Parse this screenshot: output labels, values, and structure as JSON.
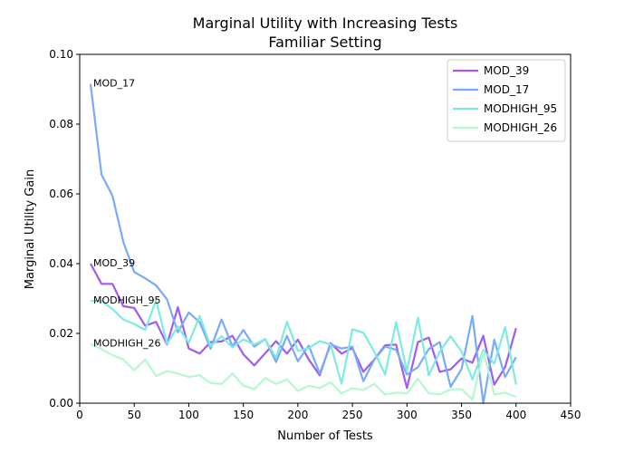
{
  "chart_data": {
    "type": "line",
    "title": "Marginal Utility with Increasing Tests",
    "subtitle": "Familiar Setting",
    "xlabel": "Number of Tests",
    "ylabel": "Marginal Utility Gain",
    "xlim": [
      0,
      450
    ],
    "ylim": [
      0,
      0.1
    ],
    "x_ticks": [
      0,
      50,
      100,
      150,
      200,
      250,
      300,
      350,
      400,
      450
    ],
    "y_ticks": [
      0.0,
      0.02,
      0.04,
      0.06,
      0.08,
      0.1
    ],
    "x_tick_labels": [
      "0",
      "50",
      "100",
      "150",
      "200",
      "250",
      "300",
      "350",
      "400",
      "450"
    ],
    "y_tick_labels": [
      "0.00",
      "0.02",
      "0.04",
      "0.06",
      "0.08",
      "0.10"
    ],
    "grid": false,
    "legend_position": "top-right",
    "x": [
      10,
      20,
      30,
      40,
      50,
      60,
      70,
      80,
      90,
      100,
      110,
      120,
      130,
      140,
      150,
      160,
      170,
      180,
      190,
      200,
      210,
      220,
      230,
      240,
      250,
      260,
      270,
      280,
      290,
      300,
      310,
      320,
      330,
      340,
      350,
      360,
      370,
      380,
      390,
      400
    ],
    "series": [
      {
        "name": "MOD_39",
        "color": "#a05bf2",
        "values": [
          0.04,
          0.0342,
          0.0342,
          0.0278,
          0.0273,
          0.0222,
          0.0233,
          0.0168,
          0.0275,
          0.0157,
          0.0142,
          0.0175,
          0.0177,
          0.0193,
          0.014,
          0.0108,
          0.0143,
          0.0178,
          0.0142,
          0.0182,
          0.0125,
          0.008,
          0.0172,
          0.0142,
          0.0158,
          0.009,
          0.0125,
          0.0166,
          0.0168,
          0.0043,
          0.0175,
          0.0188,
          0.009,
          0.0097,
          0.0128,
          0.0116,
          0.0193,
          0.0053,
          0.0103,
          0.0215
        ]
      },
      {
        "name": "MOD_17",
        "color": "#7aaaf8",
        "values": [
          0.0915,
          0.0655,
          0.0595,
          0.0462,
          0.0376,
          0.0358,
          0.0338,
          0.0298,
          0.0203,
          0.026,
          0.0232,
          0.0156,
          0.024,
          0.0163,
          0.021,
          0.0162,
          0.0184,
          0.0118,
          0.0193,
          0.012,
          0.0165,
          0.0085,
          0.0168,
          0.0157,
          0.0162,
          0.0063,
          0.0125,
          0.0162,
          0.0153,
          0.0082,
          0.0103,
          0.0155,
          0.0175,
          0.0047,
          0.0098,
          0.025,
          0.0,
          0.0182,
          0.0075,
          0.0132
        ]
      },
      {
        "name": "MODHIGH_95",
        "color": "#7eeae0",
        "values": [
          0.0293,
          0.0293,
          0.027,
          0.024,
          0.0227,
          0.021,
          0.0295,
          0.017,
          0.022,
          0.0173,
          0.025,
          0.0163,
          0.0192,
          0.016,
          0.0183,
          0.0168,
          0.0183,
          0.013,
          0.0233,
          0.015,
          0.0158,
          0.0178,
          0.0168,
          0.0056,
          0.0212,
          0.0202,
          0.0148,
          0.0082,
          0.0232,
          0.0092,
          0.0245,
          0.008,
          0.0148,
          0.0192,
          0.0148,
          0.0068,
          0.0153,
          0.0113,
          0.0218,
          0.0053
        ]
      },
      {
        "name": "MODHIGH_26",
        "color": "#b6f8d2",
        "values": [
          0.017,
          0.0155,
          0.0138,
          0.0125,
          0.0095,
          0.0125,
          0.0078,
          0.0092,
          0.0085,
          0.0075,
          0.008,
          0.0058,
          0.0055,
          0.0085,
          0.005,
          0.004,
          0.0072,
          0.0055,
          0.0068,
          0.0035,
          0.005,
          0.0043,
          0.006,
          0.0028,
          0.0043,
          0.0038,
          0.0055,
          0.0025,
          0.003,
          0.0028,
          0.007,
          0.0028,
          0.0025,
          0.004,
          0.004,
          0.001,
          0.0148,
          0.0025,
          0.003,
          0.0018
        ]
      }
    ],
    "annotations": [
      {
        "text": "MOD_17",
        "x": 10,
        "y": 0.0915
      },
      {
        "text": "MOD_39",
        "x": 10,
        "y": 0.04
      },
      {
        "text": "MODHIGH_95",
        "x": 10,
        "y": 0.0293
      },
      {
        "text": "MODHIGH_26",
        "x": 10,
        "y": 0.017
      }
    ]
  }
}
